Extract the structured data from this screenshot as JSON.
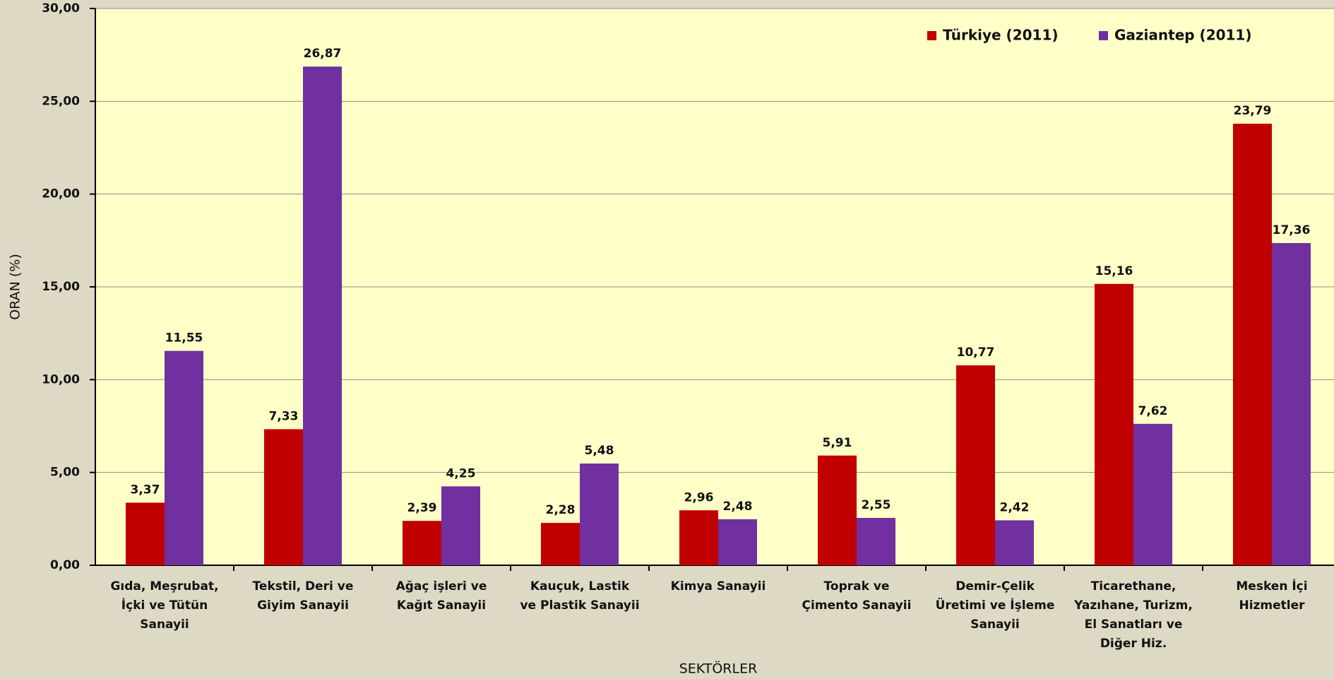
{
  "chart_data": {
    "type": "bar",
    "x_label": "SEKTÖRLER",
    "y_label": "ORAN (%)",
    "categories": [
      "Gıda, Meşrubat,\nİçki ve Tütün\nSanayii",
      "Tekstil, Deri ve\nGiyim Sanayii",
      "Ağaç işleri ve\nKağıt Sanayii",
      "Kauçuk, Lastik\nve Plastik Sanayii",
      "Kimya Sanayii",
      "Toprak ve\nÇimento Sanayii",
      "Demir-Çelik\nÜretimi ve İşleme\nSanayii",
      "Ticarethane,\nYazıhane, Turizm,\nEl Sanatları ve\nDiğer Hiz.",
      "Mesken İçi\nHizmetler"
    ],
    "series": [
      {
        "name": "Türkiye (2011)",
        "color": "#c00000",
        "values": [
          3.37,
          7.33,
          2.39,
          2.28,
          2.96,
          5.91,
          10.77,
          15.16,
          23.79
        ],
        "value_labels": [
          "3,37",
          "7,33",
          "2,39",
          "2,28",
          "2,96",
          "5,91",
          "10,77",
          "15,16",
          "23,79"
        ]
      },
      {
        "name": "Gaziantep (2011)",
        "color": "#7030a0",
        "values": [
          11.55,
          26.87,
          4.25,
          5.48,
          2.48,
          2.55,
          2.42,
          7.62,
          17.36
        ],
        "value_labels": [
          "11,55",
          "26,87",
          "4,25",
          "5,48",
          "2,48",
          "2,55",
          "2,42",
          "7,62",
          "17,36"
        ]
      }
    ],
    "ylim": [
      0,
      30
    ],
    "yticks": [
      {
        "value": 0,
        "label": "0,00"
      },
      {
        "value": 5,
        "label": "5,00"
      },
      {
        "value": 10,
        "label": "10,00"
      },
      {
        "value": 15,
        "label": "15,00"
      },
      {
        "value": 20,
        "label": "20,00"
      },
      {
        "value": 25,
        "label": "25,00"
      },
      {
        "value": 30,
        "label": "30,00"
      }
    ],
    "grid": true,
    "legend": "top-right"
  }
}
